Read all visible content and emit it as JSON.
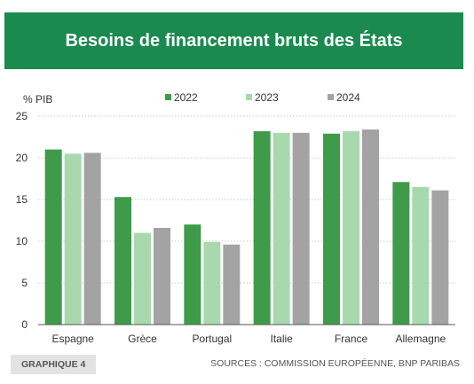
{
  "header": {
    "title": "Besoins de financement bruts des États"
  },
  "footer": {
    "tag": "GRAPHIQUE 4",
    "source": "SOURCES : COMMISSION EUROPÉENNE, BNP PARIBAS"
  },
  "colors": {
    "header_bg": "#1a8a4f",
    "series_2022": "#3d9b4a",
    "series_2023": "#a8d9ad",
    "series_2024": "#a3a3a3"
  },
  "chart_data": {
    "type": "bar",
    "ylabel": "% PIB",
    "ylim": [
      0,
      25
    ],
    "yticks": [
      0,
      5,
      10,
      15,
      20,
      25
    ],
    "grid": true,
    "legend_position": "top",
    "categories": [
      "Espagne",
      "Grèce",
      "Portugal",
      "Italie",
      "France",
      "Allemagne"
    ],
    "series": [
      {
        "name": "2022",
        "color": "#3d9b4a",
        "values": [
          21.0,
          15.3,
          12.0,
          23.2,
          22.9,
          17.1
        ]
      },
      {
        "name": "2023",
        "color": "#a8d9ad",
        "values": [
          20.5,
          11.0,
          9.9,
          23.0,
          23.2,
          16.5
        ]
      },
      {
        "name": "2024",
        "color": "#a3a3a3",
        "values": [
          20.6,
          11.6,
          9.6,
          23.0,
          23.4,
          16.1
        ]
      }
    ]
  }
}
